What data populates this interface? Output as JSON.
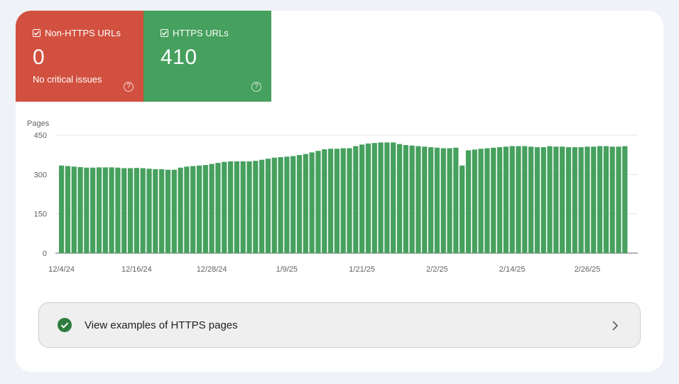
{
  "tiles": [
    {
      "label": "Non-HTTPS URLs",
      "value": "0",
      "subtitle": "No critical issues",
      "color": "#d2503f",
      "checked": true
    },
    {
      "label": "HTTPS URLs",
      "value": "410",
      "subtitle": "",
      "color": "#46a05e",
      "checked": true
    }
  ],
  "icons": {
    "checkbox": "checkbox-checked-icon",
    "help": "help-circle-icon",
    "ok": "check-circle-icon",
    "chevron": "chevron-right-icon"
  },
  "help_glyph": "?",
  "examples_button": {
    "label": "View examples of HTTPS pages",
    "icon_color": "#2e7d3e"
  },
  "chart_data": {
    "type": "bar",
    "ylabel": "Pages",
    "ylim": [
      0,
      450
    ],
    "yticks": [
      0,
      150,
      300,
      450
    ],
    "xtick_labels": [
      "12/4/24",
      "12/16/24",
      "12/28/24",
      "1/9/25",
      "1/21/25",
      "2/2/25",
      "2/14/25",
      "2/26/25"
    ],
    "xtick_index": [
      0,
      12,
      24,
      36,
      48,
      60,
      72,
      84
    ],
    "bar_color": "#46a05e",
    "grid": true,
    "series": [
      {
        "values": [
          334,
          332,
          330,
          328,
          326,
          326,
          327,
          327,
          327,
          326,
          324,
          324,
          325,
          324,
          322,
          320,
          320,
          318,
          318,
          326,
          330,
          332,
          334,
          336,
          340,
          344,
          348,
          350,
          350,
          350,
          350,
          352,
          356,
          360,
          364,
          366,
          368,
          370,
          374,
          378,
          384,
          390,
          396,
          398,
          398,
          400,
          400,
          408,
          414,
          418,
          420,
          422,
          422,
          422,
          416,
          412,
          410,
          408,
          406,
          404,
          402,
          400,
          400,
          402,
          334,
          392,
          395,
          398,
          400,
          402,
          404,
          406,
          408,
          408,
          408,
          406,
          404,
          404,
          408,
          406,
          406,
          404,
          404,
          404,
          406,
          406,
          408,
          408,
          406,
          406,
          408
        ]
      }
    ]
  }
}
